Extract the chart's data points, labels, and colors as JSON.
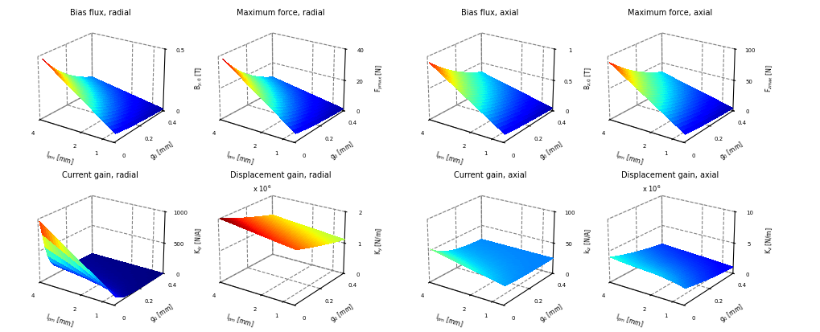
{
  "plots": [
    {
      "title": "Bias flux, radial",
      "zlabel": "B$_{y,0}$ [T]",
      "xlabel": "l$_{pm}$ [mm]",
      "ylabel": "g$_0$ [mm]",
      "zlim": [
        0,
        0.5
      ],
      "zticks": [
        0,
        0.5
      ],
      "surface_type": "bias_radial"
    },
    {
      "title": "Maximum force, radial",
      "zlabel": "F$_{ym ax}$ [N]",
      "xlabel": "l$_{pm}$ [mm]",
      "ylabel": "g$_0$ [mm]",
      "zlim": [
        0,
        40
      ],
      "zticks": [
        0,
        20,
        40
      ],
      "surface_type": "force_radial"
    },
    {
      "title": "Bias flux, axial",
      "zlabel": "B$_{z,0}$ [T]",
      "xlabel": "l$_{pm}$ [mm]",
      "ylabel": "g$_0$ [mm]",
      "zlim": [
        0,
        1
      ],
      "zticks": [
        0,
        0.5,
        1
      ],
      "surface_type": "bias_axial"
    },
    {
      "title": "Maximum force, axial",
      "zlabel": "F$_{z ma x}$ [N]",
      "xlabel": "l$_{pm}$ [mm]",
      "ylabel": "g$_0$ [mm]",
      "zlim": [
        0,
        100
      ],
      "zticks": [
        0,
        50,
        100
      ],
      "surface_type": "force_axial"
    },
    {
      "title": "Current gain, radial",
      "zlabel": "K$_{iy}$ [N/A]",
      "xlabel": "l$_{pm}$ [mm]",
      "ylabel": "g$_0$ [mm]",
      "zlim": [
        0,
        1000
      ],
      "zticks": [
        0,
        500,
        1000
      ],
      "surface_type": "current_radial"
    },
    {
      "title": "Displacement gain, radial",
      "title_prefix": "x 10$^6$",
      "zlabel": "K$_y$ [N/m]",
      "xlabel": "l$_{pm}$ [mm]",
      "ylabel": "g$_0$ [mm]",
      "zlim": [
        0,
        2
      ],
      "zticks": [
        0,
        1,
        2
      ],
      "surface_type": "disp_radial"
    },
    {
      "title": "Current gain, axial",
      "zlabel": "k$_{iz}$ [N/A]",
      "xlabel": "l$_{pm}$ [mm]",
      "ylabel": "g$_0$ [mm]",
      "zlim": [
        0,
        100
      ],
      "zticks": [
        0,
        50,
        100
      ],
      "surface_type": "current_axial"
    },
    {
      "title": "Displacement gain, axial",
      "title_prefix": "x 10$^6$",
      "zlabel": "K$_z$ [N/m]",
      "xlabel": "l$_{pm}$ [mm]",
      "ylabel": "g$_0$ [mm]",
      "zlim": [
        0,
        10
      ],
      "zticks": [
        0,
        5,
        10
      ],
      "surface_type": "disp_axial"
    }
  ],
  "lpm_range": [
    0.5,
    4.0
  ],
  "g0_range": [
    0.01,
    0.4
  ],
  "n_lpm": 25,
  "n_g0": 25,
  "background_color": "#ffffff",
  "elev": 22,
  "azim": -55
}
